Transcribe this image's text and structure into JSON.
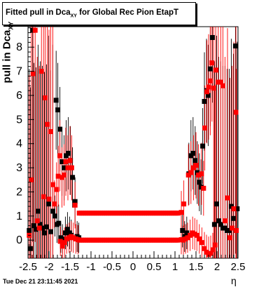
{
  "chart_data": {
    "type": "scatter",
    "title_main": "Fitted pull in Dca",
    "title_sub": "XY",
    "title_rest": " for Global Rec Pion EtapT",
    "xlabel": "η",
    "ylabel_main": "pull in Dca",
    "ylabel_sub": "XY",
    "xlim": [
      -2.5,
      2.5
    ],
    "ylim": [
      -0.75,
      8.85
    ],
    "x_ticks": [
      "-2.5",
      "-2",
      "-1.5",
      "-1",
      "-0.5",
      "0",
      "0.5",
      "1",
      "1.5",
      "2",
      "2.5"
    ],
    "y_ticks": [
      "0",
      "1",
      "2",
      "3",
      "4",
      "5",
      "6",
      "7",
      "8"
    ],
    "series": [
      {
        "color": "#000000",
        "marker": "square",
        "points": [
          [
            -2.47,
            0.4
          ],
          [
            -2.44,
            -0.35
          ],
          [
            -2.39,
            8.7
          ],
          [
            -2.36,
            0.6
          ],
          [
            -2.31,
            0.45
          ],
          [
            -2.26,
            1.2
          ],
          [
            -2.21,
            0.65
          ],
          [
            -2.16,
            0.5
          ],
          [
            -2.11,
            0.3
          ],
          [
            -2.06,
            0.55
          ],
          [
            -2.01,
            1.5
          ],
          [
            -1.96,
            0.35
          ],
          [
            -1.91,
            1.2
          ],
          [
            -1.86,
            1.0
          ],
          [
            -1.81,
            0.65
          ],
          [
            -1.77,
            0.7
          ],
          [
            -1.72,
            0.1
          ],
          [
            -1.68,
            0.05
          ],
          [
            -1.61,
            0.3
          ],
          [
            -1.56,
            0.45
          ],
          [
            -1.51,
            0.3
          ],
          [
            -1.47,
            0.2
          ],
          [
            -1.83,
            5.8
          ],
          [
            -1.79,
            5.4
          ],
          [
            -1.74,
            4.6
          ],
          [
            -1.69,
            3.25
          ],
          [
            -1.64,
            3.0
          ],
          [
            -1.59,
            3.5
          ],
          [
            -1.54,
            3.6
          ],
          [
            -1.49,
            3.3
          ],
          [
            -1.44,
            2.6
          ],
          [
            -1.38,
            1.6
          ],
          [
            -1.33,
            0.15
          ],
          [
            -1.29,
            0.1
          ],
          [
            1.18,
            0.4
          ],
          [
            1.23,
            0.15
          ],
          [
            1.28,
            0.3
          ],
          [
            1.33,
            2.75
          ],
          [
            1.38,
            3.5
          ],
          [
            1.43,
            3.6
          ],
          [
            1.48,
            3.3
          ],
          [
            1.53,
            2.8
          ],
          [
            1.58,
            2.4
          ],
          [
            1.62,
            2.2
          ],
          [
            1.66,
            3.9
          ],
          [
            1.7,
            5.75
          ],
          [
            1.75,
            6.2
          ],
          [
            1.79,
            6.0
          ],
          [
            1.84,
            7.1
          ],
          [
            1.89,
            8.4
          ],
          [
            1.94,
            0.65
          ],
          [
            1.99,
            1.5
          ],
          [
            2.04,
            0.8
          ],
          [
            2.09,
            0.65
          ],
          [
            2.14,
            0.5
          ],
          [
            2.19,
            0.5
          ],
          [
            2.24,
            0.4
          ],
          [
            2.29,
            0.4
          ],
          [
            2.34,
            1.4
          ],
          [
            2.39,
            0.9
          ],
          [
            2.44,
            8.05
          ],
          [
            2.48,
            1.3
          ]
        ]
      },
      {
        "color": "#ff0000",
        "marker": "square",
        "points": [
          [
            -2.47,
            0.2
          ],
          [
            -2.42,
            2.5
          ],
          [
            -2.38,
            6.9
          ],
          [
            -2.33,
            8.7
          ],
          [
            -2.28,
            0.8
          ],
          [
            -2.23,
            0.5
          ],
          [
            -2.18,
            7.0
          ],
          [
            -2.13,
            1.8
          ],
          [
            -2.09,
            5.9
          ],
          [
            -2.04,
            4.8
          ],
          [
            -2.0,
            1.7
          ],
          [
            -1.96,
            4.5
          ],
          [
            -1.91,
            2.3
          ],
          [
            -1.87,
            1.5
          ],
          [
            -1.82,
            2.1
          ],
          [
            -1.78,
            2.65
          ],
          [
            -1.74,
            3.5
          ],
          [
            -1.69,
            2.6
          ],
          [
            -1.64,
            2.7
          ],
          [
            -1.6,
            3.25
          ],
          [
            -1.55,
            3.0
          ],
          [
            -1.5,
            3.3
          ],
          [
            -1.46,
            3.0
          ],
          [
            -1.73,
            -0.05
          ],
          [
            -1.68,
            -0.25
          ],
          [
            -1.63,
            -0.1
          ],
          [
            -1.58,
            0.05
          ],
          [
            -1.52,
            0.1
          ],
          [
            -1.47,
            0.15
          ],
          [
            -1.42,
            0.1
          ],
          [
            -1.36,
            0.05
          ],
          [
            -1.31,
            0.02
          ],
          [
            -1.38,
            1.45
          ],
          [
            1.15,
            1.15
          ],
          [
            1.21,
            1.5
          ],
          [
            1.15,
            0.02
          ],
          [
            1.2,
            0.0
          ],
          [
            1.25,
            0.05
          ],
          [
            1.3,
            0.1
          ],
          [
            1.36,
            0.2
          ],
          [
            1.42,
            0.3
          ],
          [
            1.47,
            0.25
          ],
          [
            1.52,
            0.2
          ],
          [
            1.58,
            0.05
          ],
          [
            1.64,
            -0.1
          ],
          [
            1.7,
            -0.35
          ],
          [
            1.75,
            -0.5
          ],
          [
            1.8,
            -0.6
          ],
          [
            1.85,
            -0.55
          ],
          [
            1.9,
            -0.4
          ],
          [
            1.95,
            -0.2
          ],
          [
            1.32,
            2.7
          ],
          [
            1.38,
            2.8
          ],
          [
            1.44,
            3.0
          ],
          [
            1.5,
            3.1
          ],
          [
            1.56,
            2.7
          ],
          [
            1.63,
            2.75
          ],
          [
            1.68,
            2.15
          ],
          [
            1.71,
            4.65
          ],
          [
            1.76,
            6.15
          ],
          [
            1.8,
            6.35
          ],
          [
            1.84,
            6.6
          ],
          [
            1.88,
            7.35
          ],
          [
            1.92,
            6.3
          ],
          [
            1.97,
            7.05
          ],
          [
            2.03,
            6.55
          ],
          [
            2.09,
            6.55
          ],
          [
            2.14,
            6.4
          ],
          [
            2.19,
            0.8
          ],
          [
            2.25,
            1.75
          ],
          [
            2.31,
            0.1
          ],
          [
            2.36,
            0.5
          ],
          [
            2.4,
            1.3
          ],
          [
            2.45,
            5.3
          ],
          [
            2.46,
            0.4
          ]
        ]
      }
    ],
    "bands": [
      {
        "color": "#ff0000",
        "marker": "square",
        "x_from": -1.28,
        "x_to": 1.08,
        "y": 1.12
      },
      {
        "color": "#ff0000",
        "marker": "square",
        "x_from": -1.28,
        "x_to": 1.08,
        "y": 0.0
      }
    ]
  },
  "timestamp": "Tue Dec 21 23:11:45 2021"
}
